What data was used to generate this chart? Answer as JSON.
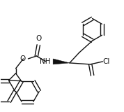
{
  "bg_color": "#ffffff",
  "line_color": "#111111",
  "line_width": 1.0,
  "figsize": [
    1.78,
    1.6
  ],
  "dpi": 100,
  "xlim": [
    0,
    178
  ],
  "ylim": [
    0,
    160
  ]
}
